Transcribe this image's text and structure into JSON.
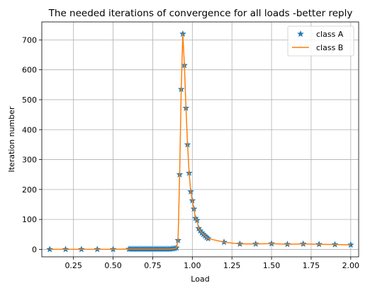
{
  "chart_data": {
    "type": "line",
    "title": "The needed iterations of convergence for all loads -better reply",
    "xlabel": "Load",
    "ylabel": "Iteration number",
    "xlim": [
      0.05,
      2.05
    ],
    "ylim": [
      -25,
      760
    ],
    "xticks": [
      0.25,
      0.5,
      0.75,
      1.0,
      1.25,
      1.5,
      1.75,
      2.0
    ],
    "xtick_labels": [
      "0.25",
      "0.50",
      "0.75",
      "1.00",
      "1.25",
      "1.50",
      "1.75",
      "2.00"
    ],
    "yticks": [
      0,
      100,
      200,
      300,
      400,
      500,
      600,
      700
    ],
    "ytick_labels": [
      "0",
      "100",
      "200",
      "300",
      "400",
      "500",
      "600",
      "700"
    ],
    "grid": true,
    "legend_position": "top-right",
    "series": [
      {
        "name": "class A",
        "style": "markers",
        "marker": "star",
        "color": "#1f77b4",
        "x": [
          0.1,
          0.2,
          0.3,
          0.4,
          0.5,
          0.6,
          0.61,
          0.62,
          0.63,
          0.64,
          0.65,
          0.66,
          0.67,
          0.68,
          0.69,
          0.7,
          0.71,
          0.72,
          0.73,
          0.74,
          0.75,
          0.76,
          0.77,
          0.78,
          0.79,
          0.8,
          0.81,
          0.82,
          0.83,
          0.84,
          0.85,
          0.86,
          0.87,
          0.88,
          0.89,
          0.9,
          0.91,
          0.92,
          0.93,
          0.94,
          0.95,
          0.96,
          0.97,
          0.98,
          0.99,
          1.0,
          1.01,
          1.02,
          1.03,
          1.04,
          1.05,
          1.06,
          1.07,
          1.08,
          1.09,
          1.1,
          1.2,
          1.3,
          1.4,
          1.5,
          1.6,
          1.7,
          1.8,
          1.9,
          2.0
        ],
        "y": [
          0,
          0,
          0,
          0,
          0,
          1,
          1,
          1,
          1,
          1,
          1,
          1,
          1,
          1,
          1,
          1,
          1,
          1,
          1,
          1,
          1,
          1,
          1,
          1,
          1,
          1,
          1,
          1,
          1,
          1,
          1,
          1,
          2,
          2,
          3,
          5,
          30,
          250,
          535,
          720,
          615,
          472,
          350,
          255,
          193,
          163,
          135,
          104,
          97,
          70,
          62,
          55,
          50,
          45,
          40,
          36,
          24,
          18,
          18,
          19,
          17,
          18,
          17,
          16,
          15
        ]
      },
      {
        "name": "class B",
        "style": "line",
        "color": "#ff7f0e",
        "x": [
          0.1,
          0.2,
          0.3,
          0.4,
          0.5,
          0.6,
          0.61,
          0.62,
          0.63,
          0.64,
          0.65,
          0.66,
          0.67,
          0.68,
          0.69,
          0.7,
          0.71,
          0.72,
          0.73,
          0.74,
          0.75,
          0.76,
          0.77,
          0.78,
          0.79,
          0.8,
          0.81,
          0.82,
          0.83,
          0.84,
          0.85,
          0.86,
          0.87,
          0.88,
          0.89,
          0.9,
          0.91,
          0.92,
          0.93,
          0.94,
          0.95,
          0.96,
          0.97,
          0.98,
          0.99,
          1.0,
          1.01,
          1.02,
          1.03,
          1.04,
          1.05,
          1.06,
          1.07,
          1.08,
          1.09,
          1.1,
          1.2,
          1.3,
          1.4,
          1.5,
          1.6,
          1.7,
          1.8,
          1.9,
          2.0
        ],
        "y": [
          0,
          0,
          0,
          0,
          0,
          1,
          1,
          1,
          1,
          1,
          1,
          1,
          1,
          1,
          1,
          1,
          1,
          1,
          1,
          1,
          1,
          1,
          1,
          1,
          1,
          1,
          1,
          1,
          1,
          1,
          1,
          1,
          2,
          2,
          3,
          5,
          30,
          250,
          535,
          720,
          615,
          472,
          350,
          255,
          193,
          163,
          135,
          104,
          97,
          70,
          62,
          55,
          50,
          45,
          40,
          36,
          24,
          18,
          18,
          19,
          17,
          18,
          17,
          16,
          15
        ]
      }
    ]
  }
}
